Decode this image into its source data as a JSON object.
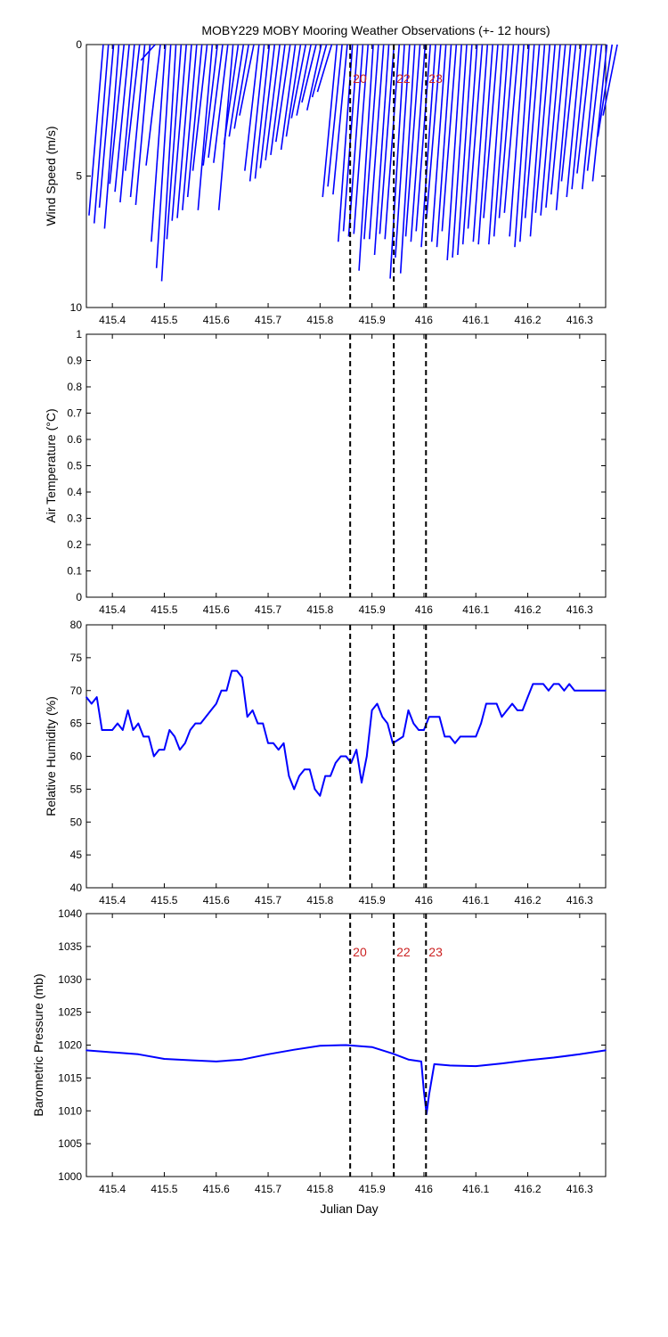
{
  "figure": {
    "title": "MOBY229 MOBY Mooring Weather Observations (+- 12 hours)",
    "xlabel": "Julian Day"
  },
  "colors": {
    "series": "#0000ff",
    "marker_label": "#cc2222",
    "axis": "#000000",
    "background": "#ffffff"
  },
  "chart_data": [
    {
      "type": "line",
      "id": "wind",
      "ylabel": "Wind Speed (m/s)",
      "ylim": [
        10,
        0
      ],
      "y_reversed": true,
      "xlim": [
        415.35,
        416.35
      ],
      "xticks": [
        415.4,
        415.5,
        415.6,
        415.7,
        415.8,
        415.9,
        416,
        416.1,
        416.2,
        416.3
      ],
      "yticks": [
        0,
        5,
        10
      ],
      "markers": [
        {
          "x": 415.858,
          "label": "20"
        },
        {
          "x": 415.942,
          "label": "22"
        },
        {
          "x": 416.004,
          "label": "23"
        }
      ],
      "series": [
        {
          "style": "wind-sticks",
          "x": [
            415.355,
            415.365,
            415.375,
            415.385,
            415.395,
            415.405,
            415.415,
            415.425,
            415.435,
            415.445,
            415.455,
            415.465,
            415.475,
            415.485,
            415.495,
            415.505,
            415.515,
            415.525,
            415.535,
            415.545,
            415.555,
            415.565,
            415.575,
            415.585,
            415.595,
            415.605,
            415.615,
            415.625,
            415.635,
            415.645,
            415.655,
            415.665,
            415.675,
            415.685,
            415.695,
            415.705,
            415.715,
            415.725,
            415.735,
            415.745,
            415.755,
            415.765,
            415.775,
            415.785,
            415.795,
            415.805,
            415.815,
            415.825,
            415.835,
            415.845,
            415.855,
            415.865,
            415.875,
            415.885,
            415.895,
            415.905,
            415.915,
            415.925,
            415.935,
            415.945,
            415.955,
            415.965,
            415.975,
            415.985,
            415.995,
            416.005,
            416.015,
            416.025,
            416.035,
            416.045,
            416.055,
            416.065,
            416.075,
            416.085,
            416.095,
            416.105,
            416.115,
            416.125,
            416.135,
            416.145,
            416.155,
            416.165,
            416.175,
            416.185,
            416.195,
            416.205,
            416.215,
            416.225,
            416.235,
            416.245,
            416.255,
            416.265,
            416.275,
            416.285,
            416.295,
            416.305,
            416.315,
            416.325,
            416.335,
            416.345
          ],
          "y": [
            6.5,
            6.8,
            6.2,
            7,
            5.3,
            5.6,
            6,
            4.8,
            5.8,
            6.1,
            0.6,
            4.6,
            7.5,
            8.5,
            9,
            7.4,
            6.7,
            6.6,
            6.3,
            5.8,
            4.8,
            6.3,
            4.6,
            4.3,
            4.5,
            6.3,
            3.8,
            3.5,
            3.2,
            2.7,
            4.8,
            5.2,
            5.1,
            4.7,
            4.4,
            4.2,
            3.7,
            4,
            3.5,
            2.8,
            2.7,
            2.2,
            2.5,
            2,
            1.8,
            5.8,
            5.4,
            5.7,
            7.5,
            7.1,
            7.3,
            7.2,
            8.6,
            7.4,
            7.4,
            8,
            7.2,
            7.4,
            8.9,
            8.1,
            8.7,
            7.3,
            7.5,
            7.1,
            7.7,
            6.6,
            7.5,
            7.7,
            7.1,
            8.2,
            8.1,
            8,
            7.6,
            7,
            7.5,
            7.6,
            6.6,
            7.6,
            7.3,
            6.6,
            6.4,
            7.3,
            7.7,
            7.5,
            6.6,
            7.3,
            6.4,
            6.5,
            6.2,
            5.7,
            6.3,
            5.2,
            5.8,
            5.5,
            4.9,
            5.5,
            4.8,
            5.2,
            3.5,
            2.7
          ]
        }
      ]
    },
    {
      "type": "line",
      "id": "airtemp",
      "ylabel": "Air Temperature (°C)",
      "ylim": [
        0,
        1
      ],
      "xlim": [
        415.35,
        416.35
      ],
      "xticks": [
        415.4,
        415.5,
        415.6,
        415.7,
        415.8,
        415.9,
        416,
        416.1,
        416.2,
        416.3
      ],
      "yticks": [
        0,
        0.1,
        0.2,
        0.3,
        0.4,
        0.5,
        0.6,
        0.7,
        0.8,
        0.9,
        1
      ],
      "markers": [
        {
          "x": 415.858
        },
        {
          "x": 415.942
        },
        {
          "x": 416.004
        }
      ],
      "series": []
    },
    {
      "type": "line",
      "id": "humidity",
      "ylabel": "Relative Humidity (%)",
      "ylim": [
        40,
        80
      ],
      "xlim": [
        415.35,
        416.35
      ],
      "xticks": [
        415.4,
        415.5,
        415.6,
        415.7,
        415.8,
        415.9,
        416,
        416.1,
        416.2,
        416.3
      ],
      "yticks": [
        40,
        45,
        50,
        55,
        60,
        65,
        70,
        75,
        80
      ],
      "markers": [
        {
          "x": 415.858
        },
        {
          "x": 415.942
        },
        {
          "x": 416.004
        }
      ],
      "series": [
        {
          "x": [
            415.35,
            415.36,
            415.37,
            415.38,
            415.39,
            415.4,
            415.41,
            415.42,
            415.43,
            415.44,
            415.45,
            415.46,
            415.47,
            415.48,
            415.49,
            415.5,
            415.51,
            415.52,
            415.53,
            415.54,
            415.55,
            415.56,
            415.57,
            415.58,
            415.59,
            415.6,
            415.61,
            415.62,
            415.63,
            415.64,
            415.65,
            415.66,
            415.67,
            415.68,
            415.69,
            415.7,
            415.71,
            415.72,
            415.73,
            415.74,
            415.75,
            415.76,
            415.77,
            415.78,
            415.79,
            415.8,
            415.81,
            415.82,
            415.83,
            415.84,
            415.85,
            415.86,
            415.87,
            415.88,
            415.89,
            415.9,
            415.91,
            415.92,
            415.93,
            415.94,
            415.95,
            415.96,
            415.97,
            415.98,
            415.99,
            416.0,
            416.01,
            416.02,
            416.03,
            416.04,
            416.05,
            416.06,
            416.07,
            416.08,
            416.09,
            416.1,
            416.11,
            416.12,
            416.13,
            416.14,
            416.15,
            416.16,
            416.17,
            416.18,
            416.19,
            416.2,
            416.21,
            416.22,
            416.23,
            416.24,
            416.25,
            416.26,
            416.27,
            416.28,
            416.29,
            416.3,
            416.31,
            416.32,
            416.33,
            416.34,
            416.35
          ],
          "y": [
            69,
            68,
            69,
            64,
            64,
            64,
            65,
            64,
            67,
            64,
            65,
            63,
            63,
            60,
            61,
            61,
            64,
            63,
            61,
            62,
            64,
            65,
            65,
            66,
            67,
            68,
            70,
            70,
            73,
            73,
            72,
            66,
            67,
            65,
            65,
            62,
            62,
            61,
            62,
            57,
            55,
            57,
            58,
            58,
            55,
            54,
            57,
            57,
            59,
            60,
            60,
            59,
            61,
            56,
            60,
            67,
            68,
            66,
            65,
            62,
            62.5,
            63,
            67,
            65,
            64,
            64,
            66,
            66,
            66,
            63,
            63,
            62,
            63,
            63,
            63,
            63,
            65,
            68,
            68,
            68,
            66,
            67,
            68,
            67,
            67,
            69,
            71,
            71,
            71,
            70,
            71,
            71,
            70,
            71,
            70,
            70,
            70,
            70,
            70,
            70,
            70
          ]
        }
      ]
    },
    {
      "type": "line",
      "id": "pressure",
      "ylabel": "Barometric Pressure (mb)",
      "ylim": [
        1000,
        1040
      ],
      "xlim": [
        415.35,
        416.35
      ],
      "xticks": [
        415.4,
        415.5,
        415.6,
        415.7,
        415.8,
        415.9,
        416,
        416.1,
        416.2,
        416.3
      ],
      "yticks": [
        1000,
        1005,
        1010,
        1015,
        1020,
        1025,
        1030,
        1035,
        1040
      ],
      "markers": [
        {
          "x": 415.858,
          "label": "20"
        },
        {
          "x": 415.942,
          "label": "22"
        },
        {
          "x": 416.004,
          "label": "23"
        }
      ],
      "series": [
        {
          "x": [
            415.35,
            415.4,
            415.45,
            415.5,
            415.55,
            415.6,
            415.65,
            415.7,
            415.75,
            415.8,
            415.85,
            415.9,
            415.94,
            415.97,
            415.995,
            416.0,
            416.005,
            416.01,
            416.02,
            416.05,
            416.1,
            416.15,
            416.2,
            416.25,
            416.3,
            416.35
          ],
          "y": [
            1019.2,
            1018.9,
            1018.6,
            1017.9,
            1017.7,
            1017.5,
            1017.8,
            1018.6,
            1019.3,
            1019.9,
            1020.0,
            1019.7,
            1018.7,
            1017.8,
            1017.5,
            1013,
            1009.5,
            1012.5,
            1017.1,
            1016.9,
            1016.8,
            1017.2,
            1017.7,
            1018.1,
            1018.6,
            1019.2
          ]
        }
      ]
    }
  ]
}
